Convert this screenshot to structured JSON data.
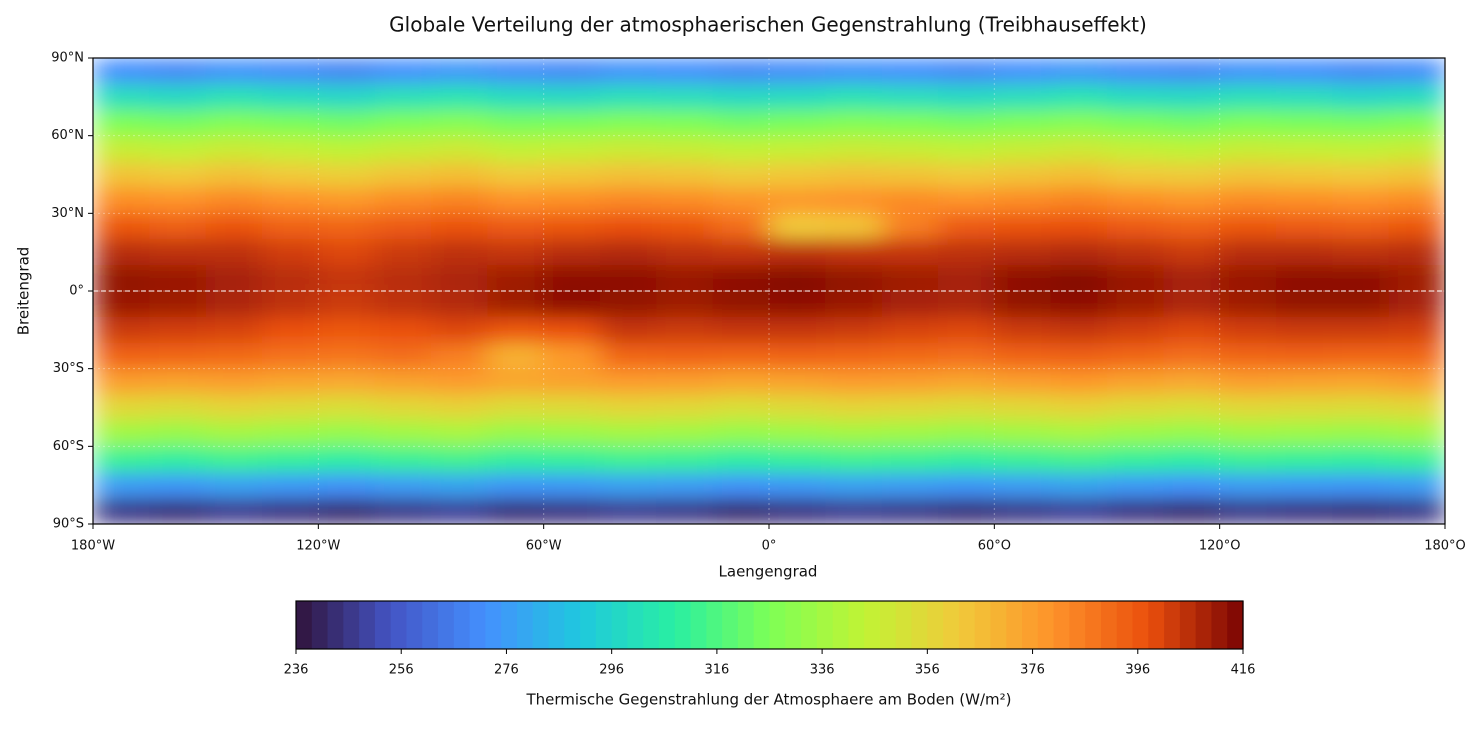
{
  "chart_data": {
    "type": "heatmap",
    "title": "Globale Verteilung der atmosphaerischen Gegenstrahlung (Treibhauseffekt)",
    "x_label": "Laengengrad",
    "y_label": "Breitengrad",
    "colorbar_label": "Thermische Gegenstrahlung der Atmosphaere am Boden (W/m²)",
    "x": [
      -172.5,
      -157.5,
      -142.5,
      -127.5,
      -112.5,
      -97.5,
      -82.5,
      -67.5,
      -52.5,
      -37.5,
      -22.5,
      -7.5,
      7.5,
      22.5,
      37.5,
      52.5,
      67.5,
      82.5,
      97.5,
      112.5,
      127.5,
      142.5,
      157.5,
      172.5
    ],
    "y": [
      85,
      75,
      65,
      55,
      45,
      35,
      25,
      15,
      5,
      -5,
      -15,
      -25,
      -35,
      -45,
      -55,
      -65,
      -75,
      -85
    ],
    "values": [
      [
        272,
        270,
        273,
        271,
        269,
        272,
        274,
        271,
        270,
        273,
        272,
        270,
        271,
        273,
        272,
        270,
        272,
        274,
        271,
        270,
        273,
        272,
        270,
        271
      ],
      [
        300,
        298,
        302,
        299,
        297,
        301,
        303,
        299,
        298,
        301,
        300,
        298,
        299,
        302,
        300,
        298,
        300,
        303,
        299,
        298,
        301,
        300,
        297,
        299
      ],
      [
        326,
        324,
        327,
        325,
        323,
        326,
        328,
        324,
        325,
        327,
        326,
        323,
        325,
        327,
        326,
        324,
        326,
        328,
        325,
        323,
        326,
        325,
        324,
        326
      ],
      [
        346,
        344,
        347,
        345,
        343,
        346,
        348,
        344,
        345,
        347,
        346,
        344,
        345,
        347,
        346,
        344,
        346,
        348,
        345,
        343,
        346,
        345,
        344,
        346
      ],
      [
        364,
        362,
        365,
        362,
        360,
        364,
        366,
        362,
        363,
        365,
        364,
        361,
        363,
        365,
        364,
        362,
        364,
        366,
        362,
        361,
        364,
        363,
        362,
        364
      ],
      [
        381,
        380,
        383,
        380,
        378,
        382,
        384,
        380,
        381,
        383,
        382,
        379,
        378,
        380,
        382,
        380,
        382,
        384,
        381,
        379,
        382,
        381,
        380,
        382
      ],
      [
        396,
        394,
        397,
        393,
        392,
        395,
        397,
        395,
        396,
        398,
        396,
        390,
        362,
        364,
        385,
        395,
        397,
        398,
        395,
        393,
        396,
        395,
        394,
        396
      ],
      [
        406,
        405,
        405,
        402,
        400,
        403,
        405,
        404,
        406,
        407,
        405,
        404,
        405,
        404,
        404,
        405,
        406,
        407,
        405,
        403,
        406,
        406,
        405,
        406
      ],
      [
        412,
        411,
        409,
        406,
        404,
        406,
        408,
        410,
        413,
        413,
        411,
        413,
        414,
        412,
        410,
        409,
        413,
        414,
        411,
        409,
        411,
        413,
        413,
        410
      ],
      [
        411,
        410,
        408,
        405,
        403,
        405,
        407,
        410,
        413,
        412,
        410,
        412,
        413,
        411,
        409,
        408,
        412,
        413,
        410,
        408,
        410,
        412,
        412,
        409
      ],
      [
        403,
        402,
        401,
        398,
        396,
        398,
        400,
        396,
        398,
        404,
        403,
        404,
        404,
        403,
        401,
        400,
        403,
        404,
        402,
        400,
        402,
        403,
        403,
        402
      ],
      [
        393,
        392,
        391,
        389,
        388,
        390,
        385,
        370,
        378,
        392,
        393,
        392,
        393,
        392,
        391,
        390,
        393,
        394,
        392,
        390,
        392,
        393,
        392,
        392
      ],
      [
        376,
        375,
        376,
        374,
        373,
        375,
        377,
        374,
        375,
        377,
        376,
        374,
        375,
        377,
        376,
        374,
        376,
        378,
        375,
        373,
        376,
        375,
        374,
        376
      ],
      [
        356,
        354,
        357,
        355,
        353,
        356,
        358,
        354,
        355,
        357,
        356,
        353,
        355,
        357,
        356,
        354,
        356,
        358,
        355,
        353,
        356,
        355,
        354,
        356
      ],
      [
        335,
        333,
        336,
        334,
        332,
        335,
        337,
        333,
        334,
        336,
        335,
        332,
        334,
        336,
        335,
        333,
        335,
        337,
        334,
        332,
        335,
        334,
        333,
        335
      ],
      [
        311,
        309,
        312,
        310,
        308,
        311,
        313,
        309,
        310,
        312,
        311,
        308,
        310,
        312,
        311,
        309,
        311,
        313,
        310,
        308,
        311,
        310,
        309,
        311
      ],
      [
        276,
        274,
        277,
        275,
        273,
        276,
        278,
        274,
        275,
        277,
        276,
        273,
        275,
        277,
        276,
        274,
        276,
        278,
        275,
        273,
        276,
        275,
        274,
        276
      ],
      [
        246,
        244,
        247,
        245,
        243,
        246,
        248,
        244,
        245,
        247,
        246,
        243,
        245,
        247,
        246,
        244,
        246,
        248,
        245,
        243,
        246,
        245,
        244,
        246
      ]
    ],
    "xlim": [
      -180,
      180
    ],
    "ylim": [
      -90,
      90
    ],
    "xticks": [
      {
        "value": -180,
        "label": "180°W"
      },
      {
        "value": -120,
        "label": "120°W"
      },
      {
        "value": -60,
        "label": "60°W"
      },
      {
        "value": 0,
        "label": "0°"
      },
      {
        "value": 60,
        "label": "60°O"
      },
      {
        "value": 120,
        "label": "120°O"
      },
      {
        "value": 180,
        "label": "180°O"
      }
    ],
    "yticks": [
      {
        "value": -90,
        "label": "90°S"
      },
      {
        "value": -60,
        "label": "60°S"
      },
      {
        "value": -30,
        "label": "30°S"
      },
      {
        "value": 0,
        "label": "0°"
      },
      {
        "value": 30,
        "label": "30°N"
      },
      {
        "value": 60,
        "label": "60°N"
      },
      {
        "value": 90,
        "label": "90°N"
      }
    ],
    "clim": [
      236,
      416
    ],
    "cticks": [
      236,
      256,
      276,
      296,
      316,
      336,
      356,
      376,
      396,
      416
    ],
    "colormap": [
      "#30123b",
      "#4454c4",
      "#4490fe",
      "#1fc8de",
      "#29efa2",
      "#7dff56",
      "#c1f334",
      "#f1ca3a",
      "#fe922a",
      "#ea4f0d",
      "#7a0403"
    ],
    "grid": true,
    "reference_line": 0
  }
}
